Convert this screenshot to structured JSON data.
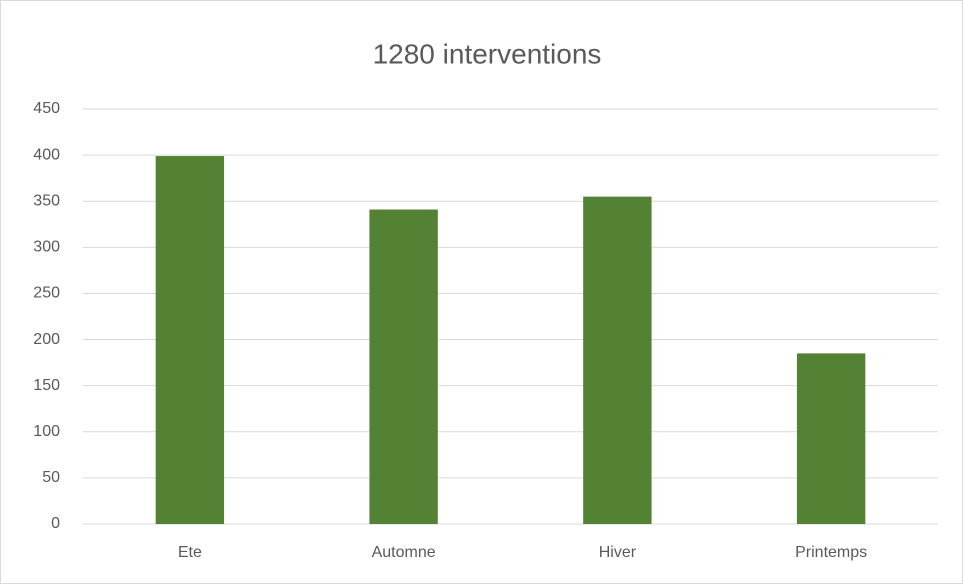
{
  "chart_data": {
    "type": "bar",
    "title": "1280 interventions",
    "categories": [
      "Ete",
      "Automne",
      "Hiver",
      "Printemps"
    ],
    "values": [
      399,
      341,
      355,
      185
    ],
    "color": "#548235",
    "ylim": [
      0,
      450
    ],
    "yticks": [
      0,
      50,
      100,
      150,
      200,
      250,
      300,
      350,
      400,
      450
    ],
    "grid": true
  }
}
